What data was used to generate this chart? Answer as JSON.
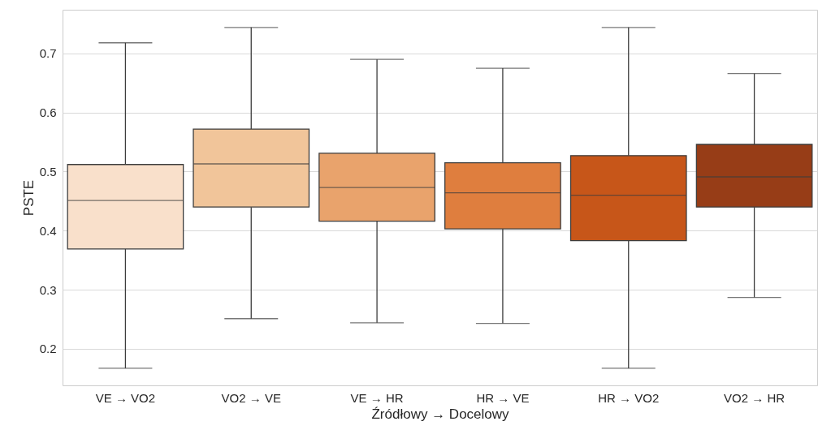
{
  "chart_data": {
    "type": "box",
    "xlabel": "Źródłowy → Docelowy",
    "ylabel": "PSTE",
    "categories": [
      "VE → VO2",
      "VO2 → VE",
      "VE → HR",
      "HR → VE",
      "HR → VO2",
      "VO2 → HR"
    ],
    "colors": [
      "#f9e0cb",
      "#f1c59a",
      "#e9a36c",
      "#df7e3e",
      "#c75619",
      "#973d17"
    ],
    "boxes": [
      {
        "low": 0.167,
        "q1": 0.369,
        "median": 0.451,
        "q3": 0.512,
        "high": 0.718
      },
      {
        "low": 0.251,
        "q1": 0.44,
        "median": 0.513,
        "q3": 0.572,
        "high": 0.744
      },
      {
        "low": 0.244,
        "q1": 0.416,
        "median": 0.473,
        "q3": 0.531,
        "high": 0.69
      },
      {
        "low": 0.243,
        "q1": 0.403,
        "median": 0.464,
        "q3": 0.515,
        "high": 0.675
      },
      {
        "low": 0.167,
        "q1": 0.383,
        "median": 0.46,
        "q3": 0.527,
        "high": 0.744
      },
      {
        "low": 0.287,
        "q1": 0.44,
        "median": 0.491,
        "q3": 0.546,
        "high": 0.666
      }
    ],
    "ylim": [
      0.138,
      0.774
    ],
    "yticks": [
      0.2,
      0.3,
      0.4,
      0.5,
      0.6,
      0.7
    ],
    "grid": "y"
  }
}
